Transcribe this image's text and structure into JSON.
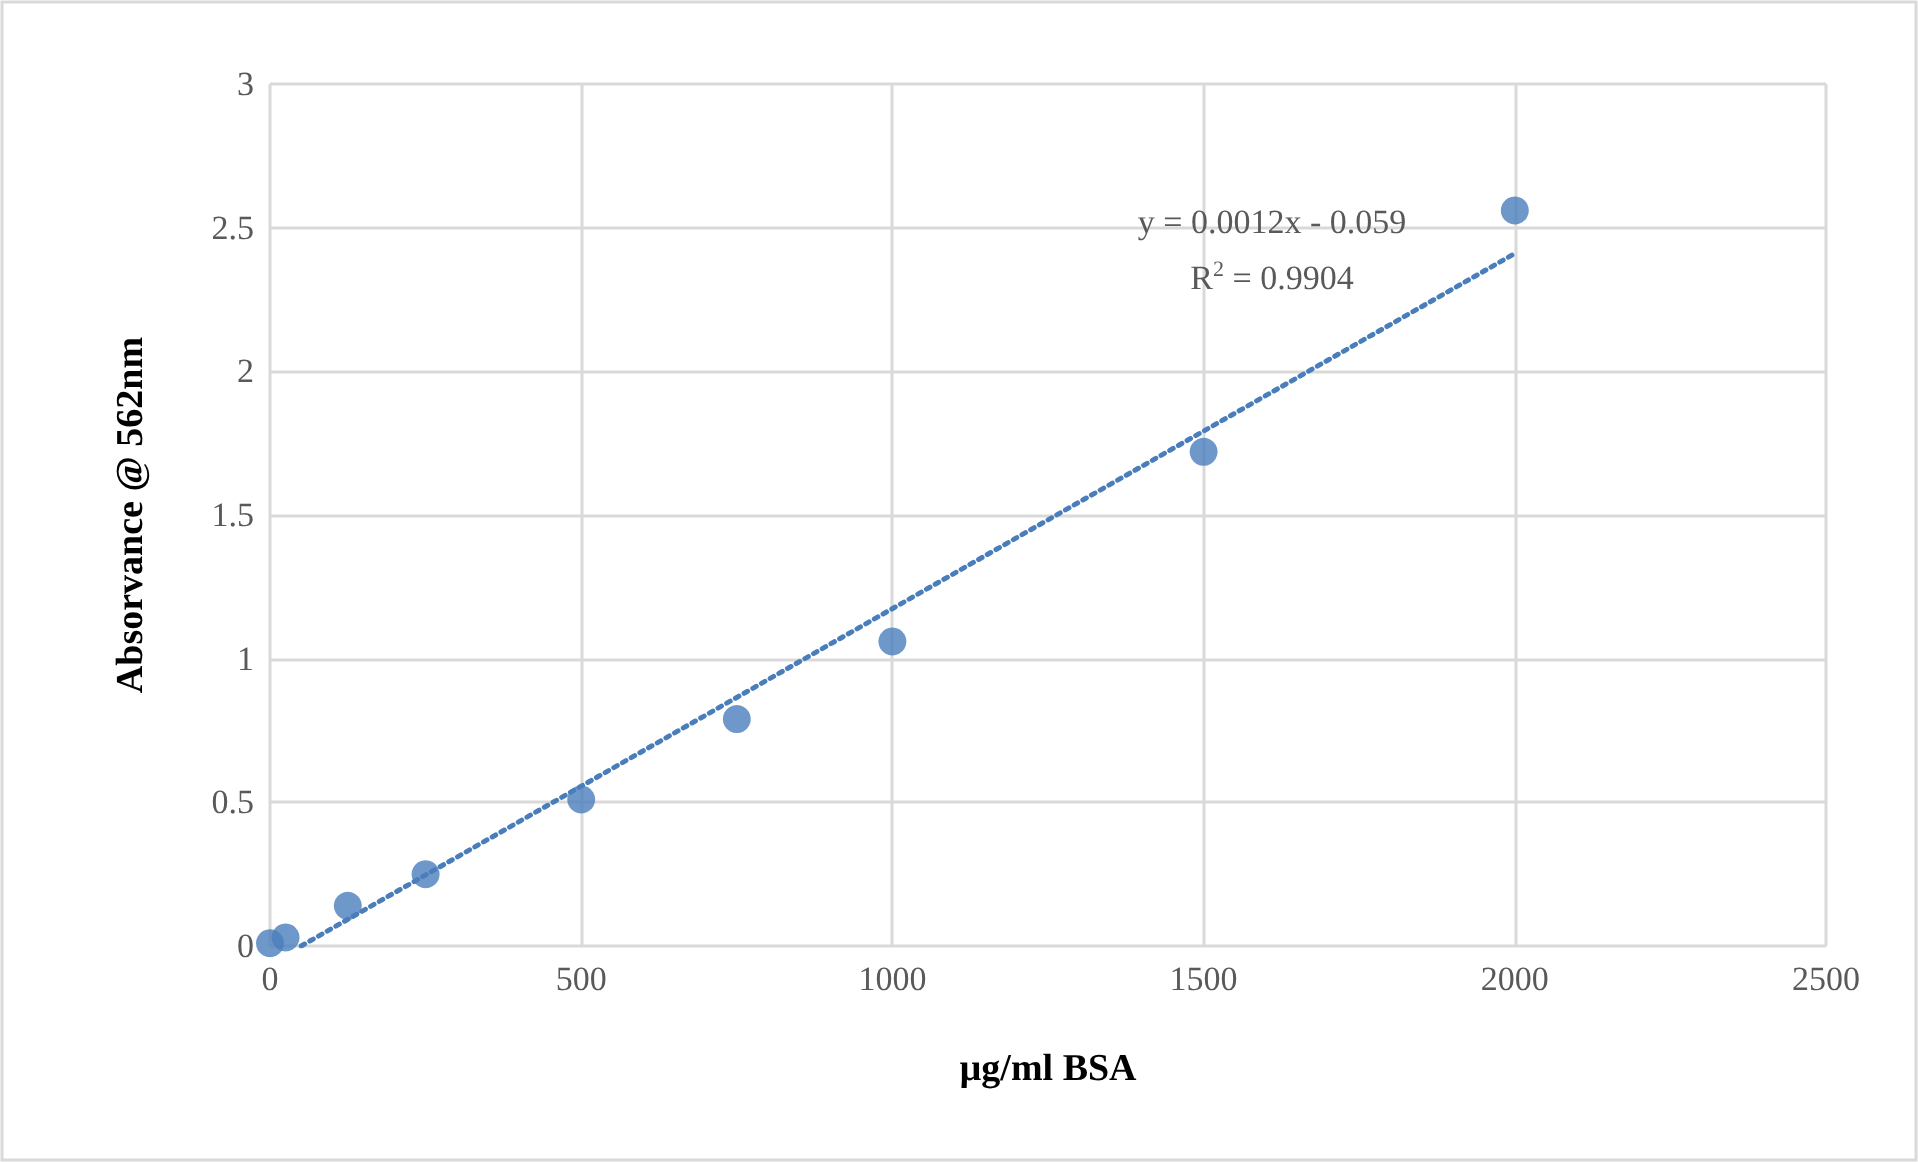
{
  "chart_data": {
    "type": "scatter",
    "xlabel": "µg/ml BSA",
    "ylabel": "Absorvance @ 562nm",
    "xlim": [
      0,
      2500
    ],
    "xticks": [
      0,
      500,
      1000,
      1500,
      2000,
      2500
    ],
    "ylim": [
      0,
      3
    ],
    "yticks": [
      0,
      0.5,
      1,
      1.5,
      2,
      2.5,
      3
    ],
    "grid": true,
    "series": [
      {
        "color": "#4a7ebb",
        "marker": "circle",
        "x": [
          0,
          25,
          125,
          250,
          500,
          750,
          1000,
          1500,
          2000
        ],
        "values": [
          0.01,
          0.03,
          0.14,
          0.25,
          0.51,
          0.79,
          1.06,
          1.72,
          2.56
        ]
      },
      {
        "type": "line",
        "color": "#4a7ebb",
        "line_style": "dotted",
        "x": [
          50,
          2000
        ],
        "values": [
          0,
          2.41
        ]
      }
    ],
    "annotations": [
      "y = 0.0012x - 0.059",
      "R$^{2}$ = 0.9904"
    ]
  }
}
